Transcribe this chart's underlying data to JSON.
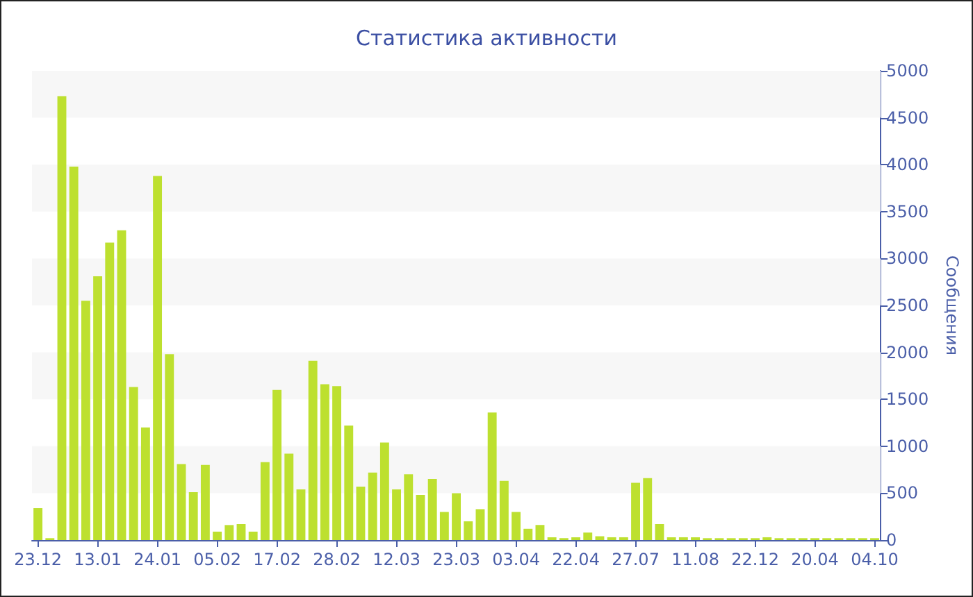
{
  "chart_data": {
    "type": "bar",
    "title": "Статистика активности",
    "ylabel": "Сообщения",
    "categories": [
      "23.12",
      null,
      null,
      null,
      null,
      "13.01",
      null,
      null,
      null,
      null,
      "24.01",
      null,
      null,
      null,
      null,
      "05.02",
      null,
      null,
      null,
      null,
      "17.02",
      null,
      null,
      null,
      null,
      "28.02",
      null,
      null,
      null,
      null,
      "12.03",
      null,
      null,
      null,
      null,
      "23.03",
      null,
      null,
      null,
      null,
      "03.04",
      null,
      null,
      null,
      null,
      "22.04",
      null,
      null,
      null,
      null,
      "27.07",
      null,
      null,
      null,
      null,
      "11.08",
      null,
      null,
      null,
      null,
      "22.12",
      null,
      null,
      null,
      null,
      "20.04",
      null,
      null,
      null,
      null,
      "04.10"
    ],
    "values": [
      340,
      20,
      4730,
      3980,
      2550,
      2810,
      3170,
      3300,
      1630,
      1200,
      3880,
      1980,
      810,
      510,
      800,
      90,
      160,
      170,
      90,
      830,
      1600,
      920,
      540,
      1910,
      1660,
      1640,
      1220,
      570,
      720,
      1040,
      540,
      700,
      480,
      650,
      300,
      500,
      200,
      330,
      1360,
      630,
      300,
      120,
      160,
      30,
      20,
      30,
      80,
      40,
      30,
      30,
      610,
      660,
      170,
      30,
      30,
      30,
      20,
      20,
      20,
      20,
      20,
      30,
      20,
      20,
      20,
      20,
      20,
      20,
      20,
      20,
      20
    ],
    "color": "#bde02f",
    "ylim": [
      0,
      5000
    ],
    "yticks": [
      0,
      500,
      1000,
      1500,
      2000,
      2500,
      3000,
      3500,
      4000,
      4500,
      5000
    ],
    "bands": [
      {
        "axis": "y",
        "from": 500,
        "to": 1000,
        "color": "#f7f7f7"
      },
      {
        "axis": "y",
        "from": 1500,
        "to": 2000,
        "color": "#f7f7f7"
      },
      {
        "axis": "y",
        "from": 2500,
        "to": 3000,
        "color": "#f7f7f7"
      },
      {
        "axis": "y",
        "from": 3500,
        "to": 4000,
        "color": "#f7f7f7"
      },
      {
        "axis": "y",
        "from": 4500,
        "to": 5000,
        "color": "#f7f7f7"
      }
    ]
  }
}
